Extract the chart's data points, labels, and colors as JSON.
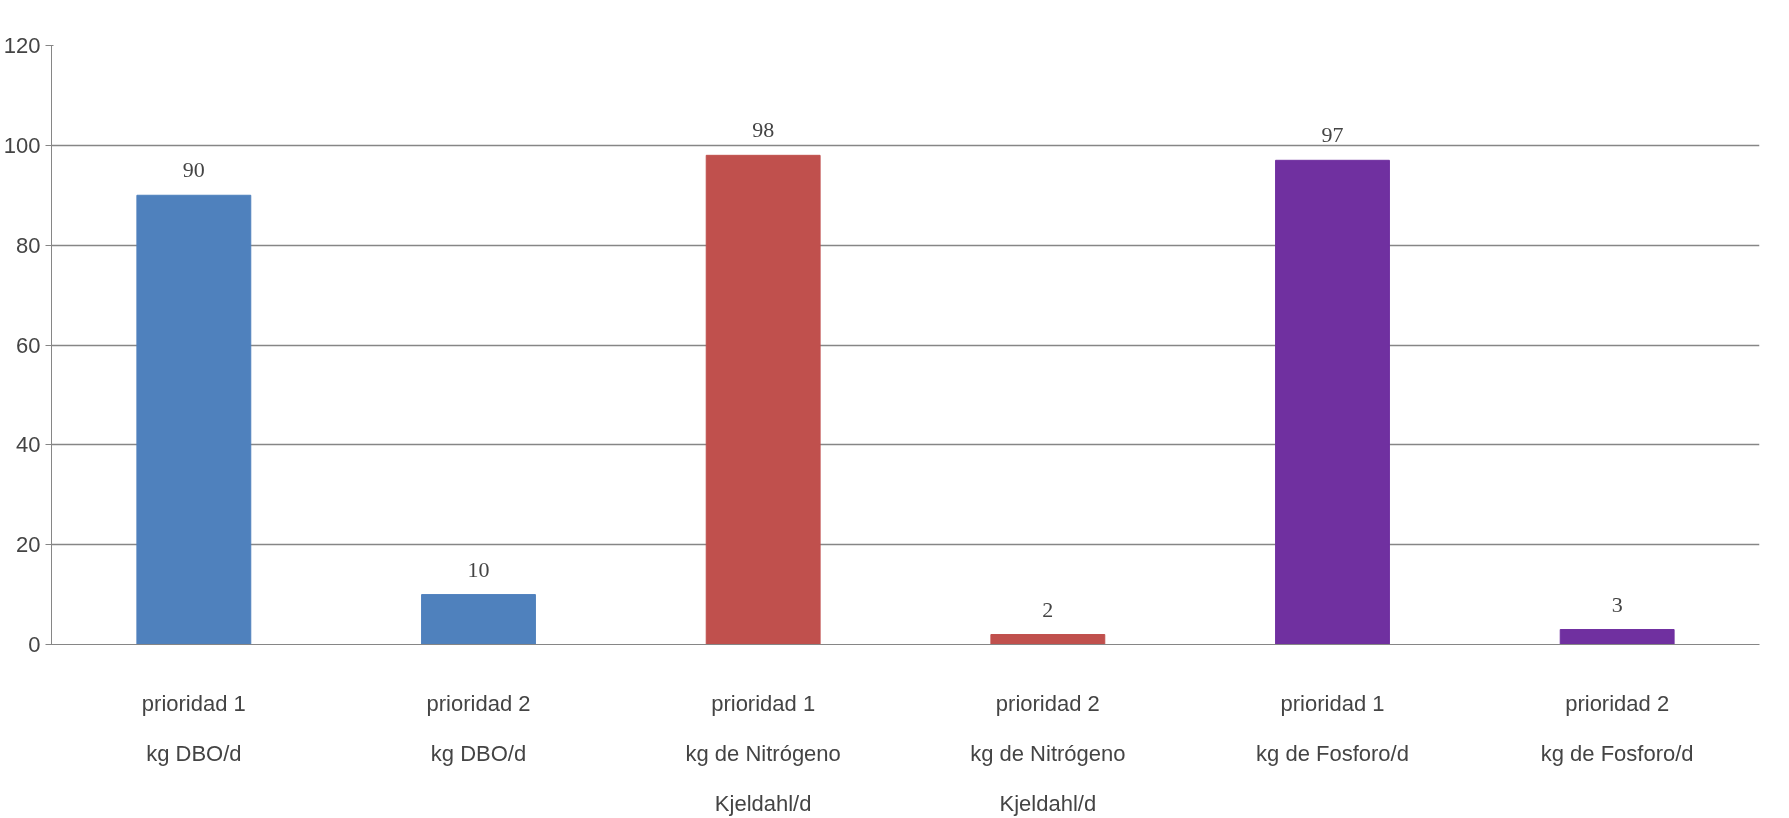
{
  "chart_data": {
    "type": "bar",
    "categories": [
      "prioridad 1\nkg DBO/d",
      "prioridad 2\nkg DBO/d",
      "prioridad 1\nkg de Nitrógeno\nKjeldahl/d",
      "prioridad 2\nkg de Nitrógeno\nKjeldahl/d",
      "prioridad 1\nkg de Fosforo/d",
      "prioridad 2\nkg de Fosforo/d"
    ],
    "values": [
      90,
      10,
      98,
      2,
      97,
      3
    ],
    "colors": [
      "#4f81bd",
      "#4f81bd",
      "#c0504d",
      "#c0504d",
      "#7030a0",
      "#7030a0"
    ],
    "ylim": [
      0,
      120
    ],
    "yticks": [
      0,
      20,
      40,
      60,
      80,
      100,
      120
    ],
    "grid": "y",
    "data_labels": true
  }
}
